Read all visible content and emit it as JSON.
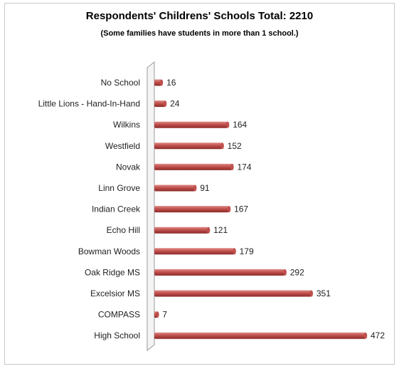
{
  "chart_data": {
    "type": "bar",
    "orientation": "horizontal",
    "title": "Respondents' Childrens' Schools Total:  2210",
    "subtitle": "(Some families have students in more than 1 school.)",
    "categories": [
      "No School",
      "Little Lions - Hand-In-Hand",
      "Wilkins",
      "Westfield",
      "Novak",
      "Linn Grove",
      "Indian Creek",
      "Echo Hill",
      "Bowman Woods",
      "Oak Ridge MS",
      "Excelsior MS",
      "COMPASS",
      "High School"
    ],
    "values": [
      16,
      24,
      164,
      152,
      174,
      91,
      167,
      121,
      179,
      292,
      351,
      7,
      472
    ],
    "xlim": [
      0,
      480
    ],
    "grid": false,
    "legend": "none",
    "bar_color": "#c0504d",
    "bar_dark_color": "#8c2a28",
    "bar_light_color": "#e08a86"
  }
}
